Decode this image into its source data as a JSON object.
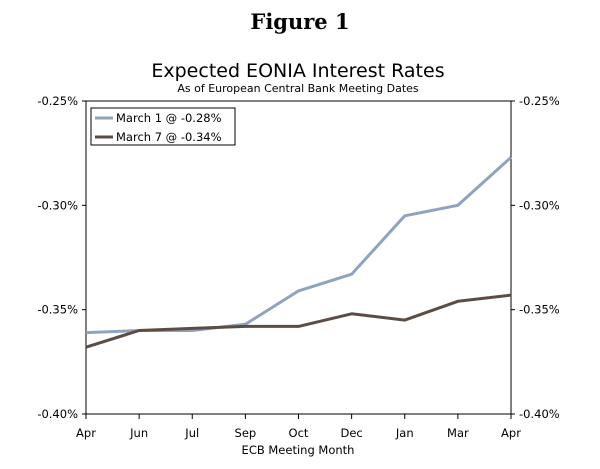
{
  "figure_title": "Figure 1",
  "chart_data": {
    "type": "line",
    "title": "Expected EONIA Interest Rates",
    "subtitle": "As of European Central Bank Meeting Dates",
    "xlabel": "ECB Meeting Month",
    "ylabel": "",
    "categories": [
      "Apr",
      "Jun",
      "Jul",
      "Sep",
      "Oct",
      "Dec",
      "Jan",
      "Mar",
      "Apr"
    ],
    "ylim": [
      -0.4,
      -0.25
    ],
    "yticks": [
      -0.25,
      -0.3,
      -0.35,
      -0.4
    ],
    "ytick_labels": [
      "-0.25%",
      "-0.30%",
      "-0.35%",
      "-0.40%"
    ],
    "grid": false,
    "legend_position": "top-left",
    "series": [
      {
        "name": "March 1 @ -0.28%",
        "color": "#8fa3bf",
        "values": [
          -0.361,
          -0.36,
          -0.36,
          -0.357,
          -0.341,
          -0.333,
          -0.305,
          -0.3,
          -0.277
        ]
      },
      {
        "name": "March 7 @ -0.34%",
        "color": "#5b4d44",
        "values": [
          -0.368,
          -0.36,
          -0.359,
          -0.358,
          -0.358,
          -0.352,
          -0.355,
          -0.346,
          -0.343
        ]
      }
    ]
  }
}
